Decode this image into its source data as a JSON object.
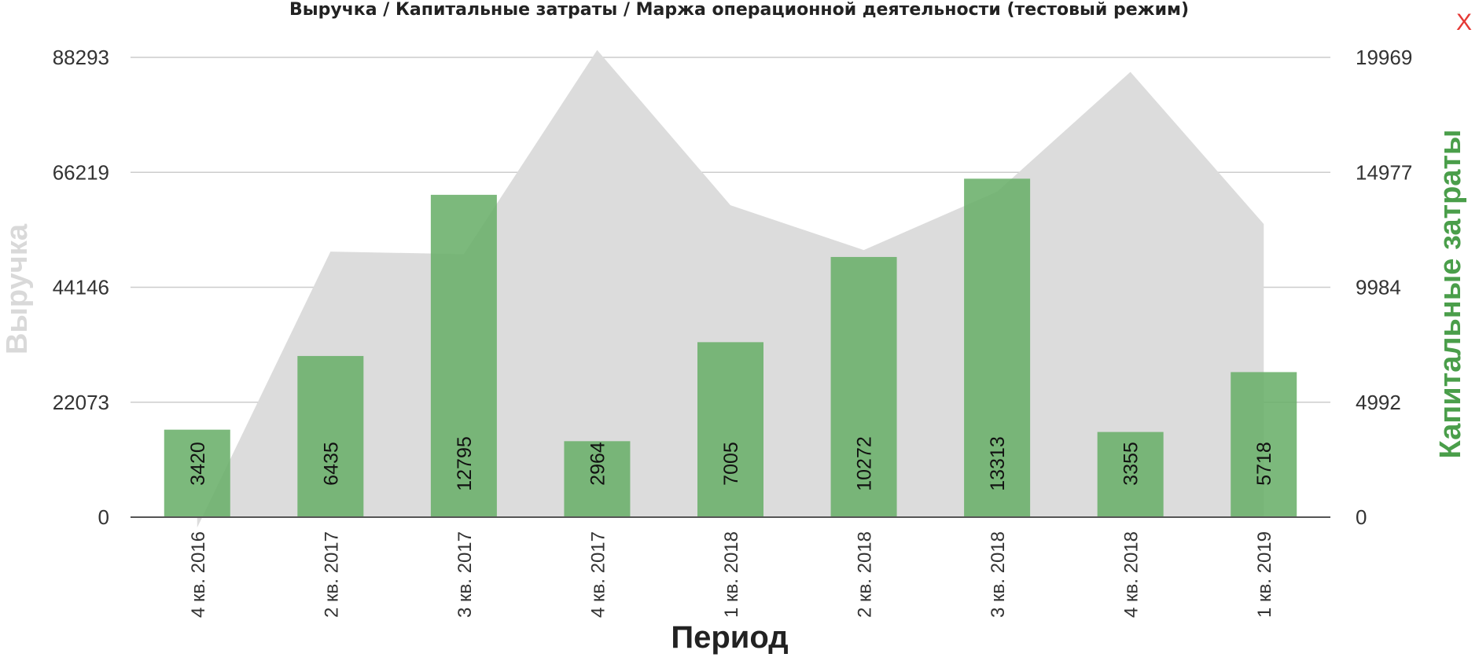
{
  "title": "Выручка / Капитальные затраты / Маржа операционной деятельности (тестовый режим)",
  "close_label": "X",
  "colors": {
    "revenue_area": "#dcdcdc",
    "capex_bar": "#6aaf6a",
    "ylabel_left": "#d9d9d9",
    "ylabel_right": "#4a9e4a",
    "close": "#e53935",
    "grid": "#cccccc"
  },
  "chart_data": {
    "type": "bar",
    "title": "Выручка / Капитальные затраты / Маржа операционной деятельности (тестовый режим)",
    "xlabel": "Период",
    "ylabel_left": "Выручка",
    "ylabel_right": "Капитальные затраты",
    "categories": [
      "4 кв. 2016",
      "2 кв. 2017",
      "3 кв. 2017",
      "4 кв. 2017",
      "1 кв. 2018",
      "2 кв. 2018",
      "3 кв. 2018",
      "4 кв. 2018",
      "1 кв. 2019"
    ],
    "left_ticks": [
      "0",
      "22073",
      "44146",
      "66219",
      "88293"
    ],
    "right_ticks": [
      "0",
      "4992",
      "9984",
      "14977",
      "19969"
    ],
    "ylim_left": [
      0,
      88293
    ],
    "ylim_right": [
      0,
      19969
    ],
    "grid": true,
    "series": [
      {
        "name": "Выручка",
        "type": "area",
        "axis": "left",
        "values": [
          -2000,
          51000,
          50500,
          89700,
          59900,
          51300,
          62500,
          85500,
          56300
        ]
      },
      {
        "name": "Капитальные затраты",
        "type": "bar",
        "axis": "right",
        "values": [
          3420,
          6435,
          12795,
          2964,
          7005,
          10272,
          13313,
          3355,
          5718
        ],
        "labels": [
          "3420",
          "6435",
          "12795",
          "2964",
          "7005",
          "10272",
          "13313",
          "3355",
          "5718"
        ],
        "bar_tops": [
          3800,
          7000,
          14000,
          3300,
          7600,
          11300,
          14700,
          3700,
          6300
        ]
      }
    ]
  }
}
